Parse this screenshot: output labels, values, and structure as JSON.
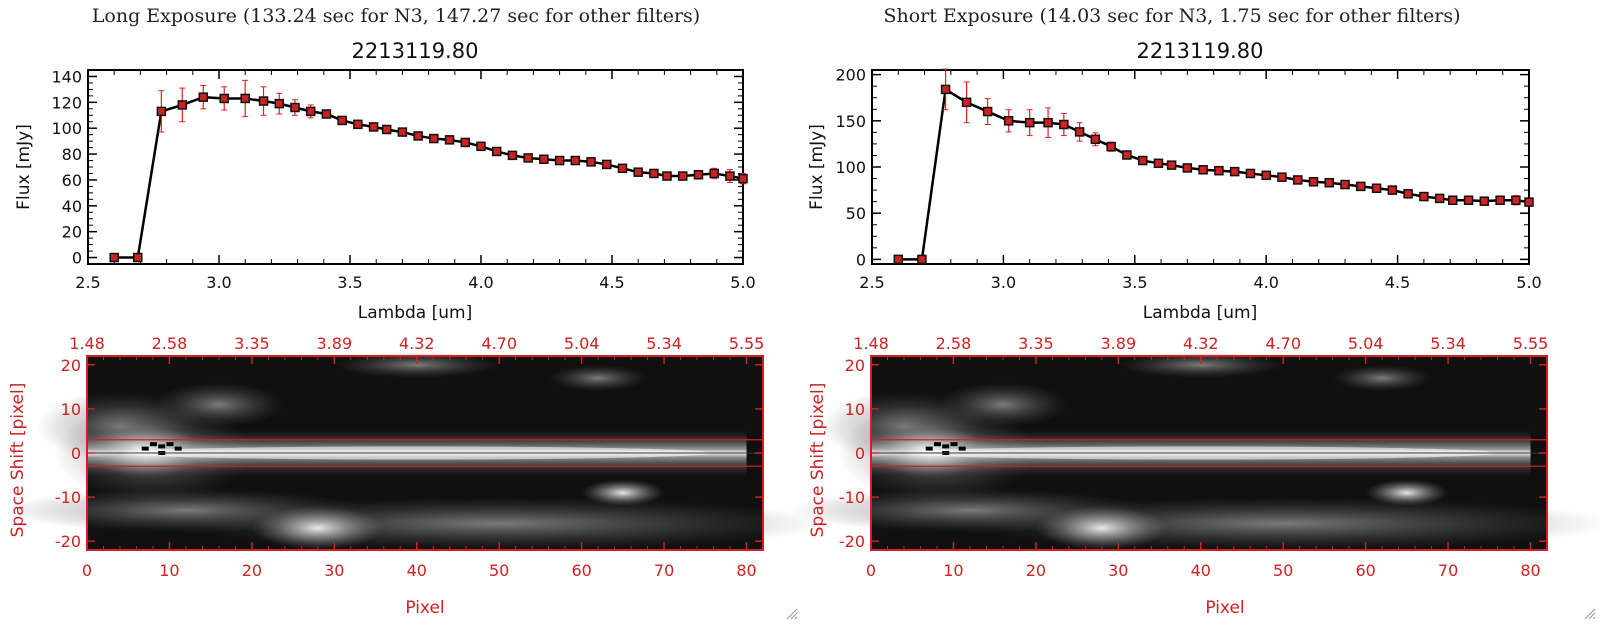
{
  "colors": {
    "axis": "#000000",
    "error_bar": "#dd2222",
    "marker": "#cc2222",
    "image_axis": "#cc2222",
    "line": "#000000"
  },
  "resize_handle_icon": "resize-grip-icon",
  "chart_data": [
    {
      "type": "line",
      "heading": "Long Exposure (133.24 sec for N3, 147.27 sec for other filters)",
      "title": "2213119.80",
      "xlabel": "Lambda [um]",
      "ylabel": "Flux [mJy]",
      "xlim": [
        2.5,
        5.0
      ],
      "ylim": [
        -5,
        145
      ],
      "xticks": [
        2.5,
        3.0,
        3.5,
        4.0,
        4.5,
        5.0
      ],
      "xtick_labels": [
        "2.5",
        "3.0",
        "3.5",
        "4.0",
        "4.5",
        "5.0"
      ],
      "yticks": [
        0,
        20,
        40,
        60,
        80,
        100,
        120,
        140
      ],
      "ytick_labels": [
        "0",
        "20",
        "40",
        "60",
        "80",
        "100",
        "120",
        "140"
      ],
      "grid": false,
      "x": [
        2.6,
        2.69,
        2.78,
        2.86,
        2.94,
        3.02,
        3.1,
        3.17,
        3.23,
        3.29,
        3.35,
        3.41,
        3.47,
        3.53,
        3.59,
        3.64,
        3.7,
        3.76,
        3.82,
        3.88,
        3.94,
        4.0,
        4.06,
        4.12,
        4.18,
        4.24,
        4.3,
        4.36,
        4.42,
        4.48,
        4.54,
        4.6,
        4.66,
        4.71,
        4.77,
        4.83,
        4.89,
        4.95,
        5.0
      ],
      "y": [
        0,
        0,
        113,
        118,
        124,
        123,
        123,
        121,
        119,
        116,
        113,
        111,
        106,
        103,
        101,
        99,
        97,
        94,
        92,
        91,
        89,
        86,
        82,
        79,
        77,
        76,
        75,
        75,
        74,
        72,
        69,
        66,
        65,
        63,
        63,
        64,
        65,
        63,
        61
      ],
      "yerr": [
        1,
        1,
        16,
        13,
        9,
        9,
        14,
        11,
        8,
        6,
        5,
        3,
        3,
        2,
        2,
        2,
        2,
        2,
        2,
        2,
        2,
        2,
        2,
        2,
        2,
        2,
        2,
        2,
        2,
        2,
        2,
        2,
        2,
        2,
        3,
        3,
        4,
        5,
        4
      ]
    },
    {
      "type": "line",
      "heading": "Short Exposure (14.03 sec for N3, 1.75 sec for other filters)",
      "title": "2213119.80",
      "xlabel": "Lambda [um]",
      "ylabel": "Flux [mJy]",
      "xlim": [
        2.5,
        5.0
      ],
      "ylim": [
        -5,
        205
      ],
      "xticks": [
        2.5,
        3.0,
        3.5,
        4.0,
        4.5,
        5.0
      ],
      "xtick_labels": [
        "2.5",
        "3.0",
        "3.5",
        "4.0",
        "4.5",
        "5.0"
      ],
      "yticks": [
        0,
        50,
        100,
        150,
        200
      ],
      "ytick_labels": [
        "0",
        "50",
        "100",
        "150",
        "200"
      ],
      "grid": false,
      "x": [
        2.6,
        2.69,
        2.78,
        2.86,
        2.94,
        3.02,
        3.1,
        3.17,
        3.23,
        3.29,
        3.35,
        3.41,
        3.47,
        3.53,
        3.59,
        3.64,
        3.7,
        3.76,
        3.82,
        3.88,
        3.94,
        4.0,
        4.06,
        4.12,
        4.18,
        4.24,
        4.3,
        4.36,
        4.42,
        4.48,
        4.54,
        4.6,
        4.66,
        4.71,
        4.77,
        4.83,
        4.89,
        4.95,
        5.0
      ],
      "y": [
        0,
        0,
        184,
        170,
        160,
        150,
        148,
        148,
        146,
        138,
        130,
        122,
        113,
        107,
        104,
        102,
        99,
        97,
        96,
        95,
        93,
        91,
        89,
        86,
        84,
        83,
        81,
        79,
        77,
        75,
        71,
        68,
        66,
        64,
        64,
        63,
        64,
        64,
        62
      ],
      "yerr": [
        1,
        1,
        22,
        22,
        14,
        12,
        14,
        16,
        12,
        10,
        7,
        5,
        3,
        3,
        2,
        2,
        2,
        2,
        2,
        2,
        2,
        2,
        2,
        2,
        2,
        2,
        2,
        2,
        2,
        2,
        2,
        2,
        2,
        2,
        3,
        3,
        4,
        5,
        4
      ]
    },
    {
      "type": "heatmap",
      "panel": "long-exposure-image",
      "xlabel": "Pixel",
      "ylabel": "Space Shift [pixel]",
      "xlim": [
        0,
        82
      ],
      "ylim": [
        -22,
        22
      ],
      "xticks": [
        0,
        10,
        20,
        30,
        40,
        50,
        60,
        70,
        80
      ],
      "xtick_labels": [
        "0",
        "10",
        "20",
        "30",
        "40",
        "50",
        "60",
        "70",
        "80"
      ],
      "yticks": [
        -20,
        -10,
        0,
        10,
        20
      ],
      "ytick_labels": [
        "-20",
        "-10",
        "0",
        "10",
        "20"
      ],
      "top_tick_labels": [
        "1.48",
        "2.58",
        "3.35",
        "3.89",
        "4.32",
        "4.70",
        "5.04",
        "5.34",
        "5.55"
      ],
      "aperture_rows": [
        -3,
        3
      ],
      "colormap": "gray"
    },
    {
      "type": "heatmap",
      "panel": "short-exposure-image",
      "xlabel": "Pixel",
      "ylabel": "Space Shift [pixel]",
      "xlim": [
        0,
        82
      ],
      "ylim": [
        -22,
        22
      ],
      "xticks": [
        0,
        10,
        20,
        30,
        40,
        50,
        60,
        70,
        80
      ],
      "xtick_labels": [
        "0",
        "10",
        "20",
        "30",
        "40",
        "50",
        "60",
        "70",
        "80"
      ],
      "yticks": [
        -20,
        -10,
        0,
        10,
        20
      ],
      "ytick_labels": [
        "-20",
        "-10",
        "0",
        "10",
        "20"
      ],
      "top_tick_labels": [
        "1.48",
        "2.58",
        "3.35",
        "3.89",
        "4.32",
        "4.70",
        "5.04",
        "5.34",
        "5.55"
      ],
      "aperture_rows": [
        -3,
        3
      ],
      "colormap": "gray"
    }
  ]
}
